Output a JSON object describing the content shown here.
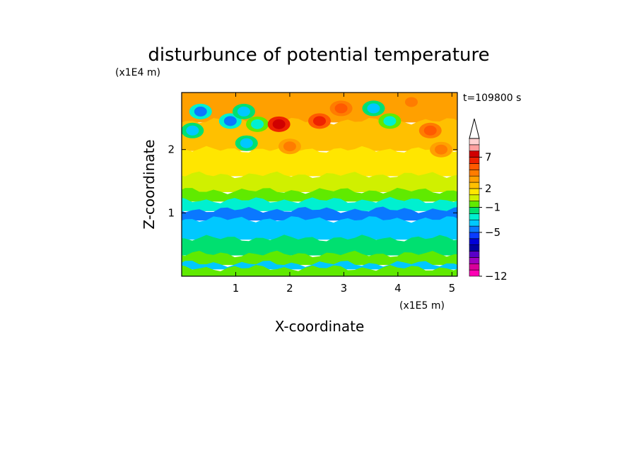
{
  "chart_data": {
    "type": "heatmap",
    "title": "disturbunce of potential temperature",
    "xlabel": "X-coordinate",
    "ylabel": "Z-coordinate",
    "x_unit": "(x1E5 m)",
    "y_unit": "(x1E4 m)",
    "time_label": "t=109800 s",
    "xlim": [
      0,
      5.1
    ],
    "ylim": [
      0,
      2.9
    ],
    "x_ticks": [
      1,
      2,
      3,
      4,
      5
    ],
    "y_ticks": [
      1,
      2
    ],
    "colorbar": {
      "levels": [
        -12,
        -11,
        -10,
        -9,
        -8,
        -7,
        -6,
        -5,
        -4,
        -3,
        -2,
        -1,
        0,
        1,
        2,
        3,
        4,
        5,
        6,
        7,
        8,
        9
      ],
      "labeled_ticks": [
        -12,
        -5,
        -1,
        2,
        7
      ],
      "extend": "max",
      "colors": [
        "#ff00b4",
        "#d8009a",
        "#a000c0",
        "#5a00c8",
        "#0000a0",
        "#0000d8",
        "#0a3cff",
        "#0a78ff",
        "#00c8ff",
        "#00f0d0",
        "#00e070",
        "#60ea00",
        "#d0f000",
        "#ffe600",
        "#ffc000",
        "#ffa000",
        "#ff7c00",
        "#ff5a00",
        "#ee2200",
        "#d00000",
        "#ffa0a0",
        "#ffd0d0"
      ]
    },
    "bands": [
      {
        "z": [
          2.45,
          2.9
        ],
        "value": 3
      },
      {
        "z": [
          2.0,
          2.45
        ],
        "value": 2
      },
      {
        "z": [
          1.6,
          2.0
        ],
        "value": 1
      },
      {
        "z": [
          1.35,
          1.6
        ],
        "value": 0
      },
      {
        "z": [
          1.2,
          1.35
        ],
        "value": -1
      },
      {
        "z": [
          1.05,
          1.2
        ],
        "value": -3
      },
      {
        "z": [
          0.9,
          1.05
        ],
        "value": -5
      },
      {
        "z": [
          0.6,
          0.9
        ],
        "value": -4
      },
      {
        "z": [
          0.35,
          0.6
        ],
        "value": -2
      },
      {
        "z": [
          0.2,
          0.35
        ],
        "value": -1
      },
      {
        "z": [
          0.13,
          0.2
        ],
        "value": -4
      },
      {
        "z": [
          0.0,
          0.13
        ],
        "value": -1
      }
    ],
    "features": [
      {
        "x": 0.35,
        "z": 2.6,
        "value": -5
      },
      {
        "x": 0.9,
        "z": 2.45,
        "value": -5
      },
      {
        "x": 1.15,
        "z": 2.6,
        "value": -4
      },
      {
        "x": 1.2,
        "z": 2.1,
        "value": -4
      },
      {
        "x": 1.4,
        "z": 2.4,
        "value": -3
      },
      {
        "x": 1.8,
        "z": 2.4,
        "value": 7
      },
      {
        "x": 2.55,
        "z": 2.45,
        "value": 6
      },
      {
        "x": 2.95,
        "z": 2.65,
        "value": 5
      },
      {
        "x": 3.55,
        "z": 2.65,
        "value": -4
      },
      {
        "x": 3.85,
        "z": 2.45,
        "value": -3
      },
      {
        "x": 4.25,
        "z": 2.75,
        "value": 4
      },
      {
        "x": 4.6,
        "z": 2.3,
        "value": 5
      },
      {
        "x": 4.8,
        "z": 2.0,
        "value": 4
      },
      {
        "x": 0.2,
        "z": 2.3,
        "value": -4
      },
      {
        "x": 2.0,
        "z": 2.05,
        "value": 4
      }
    ]
  }
}
